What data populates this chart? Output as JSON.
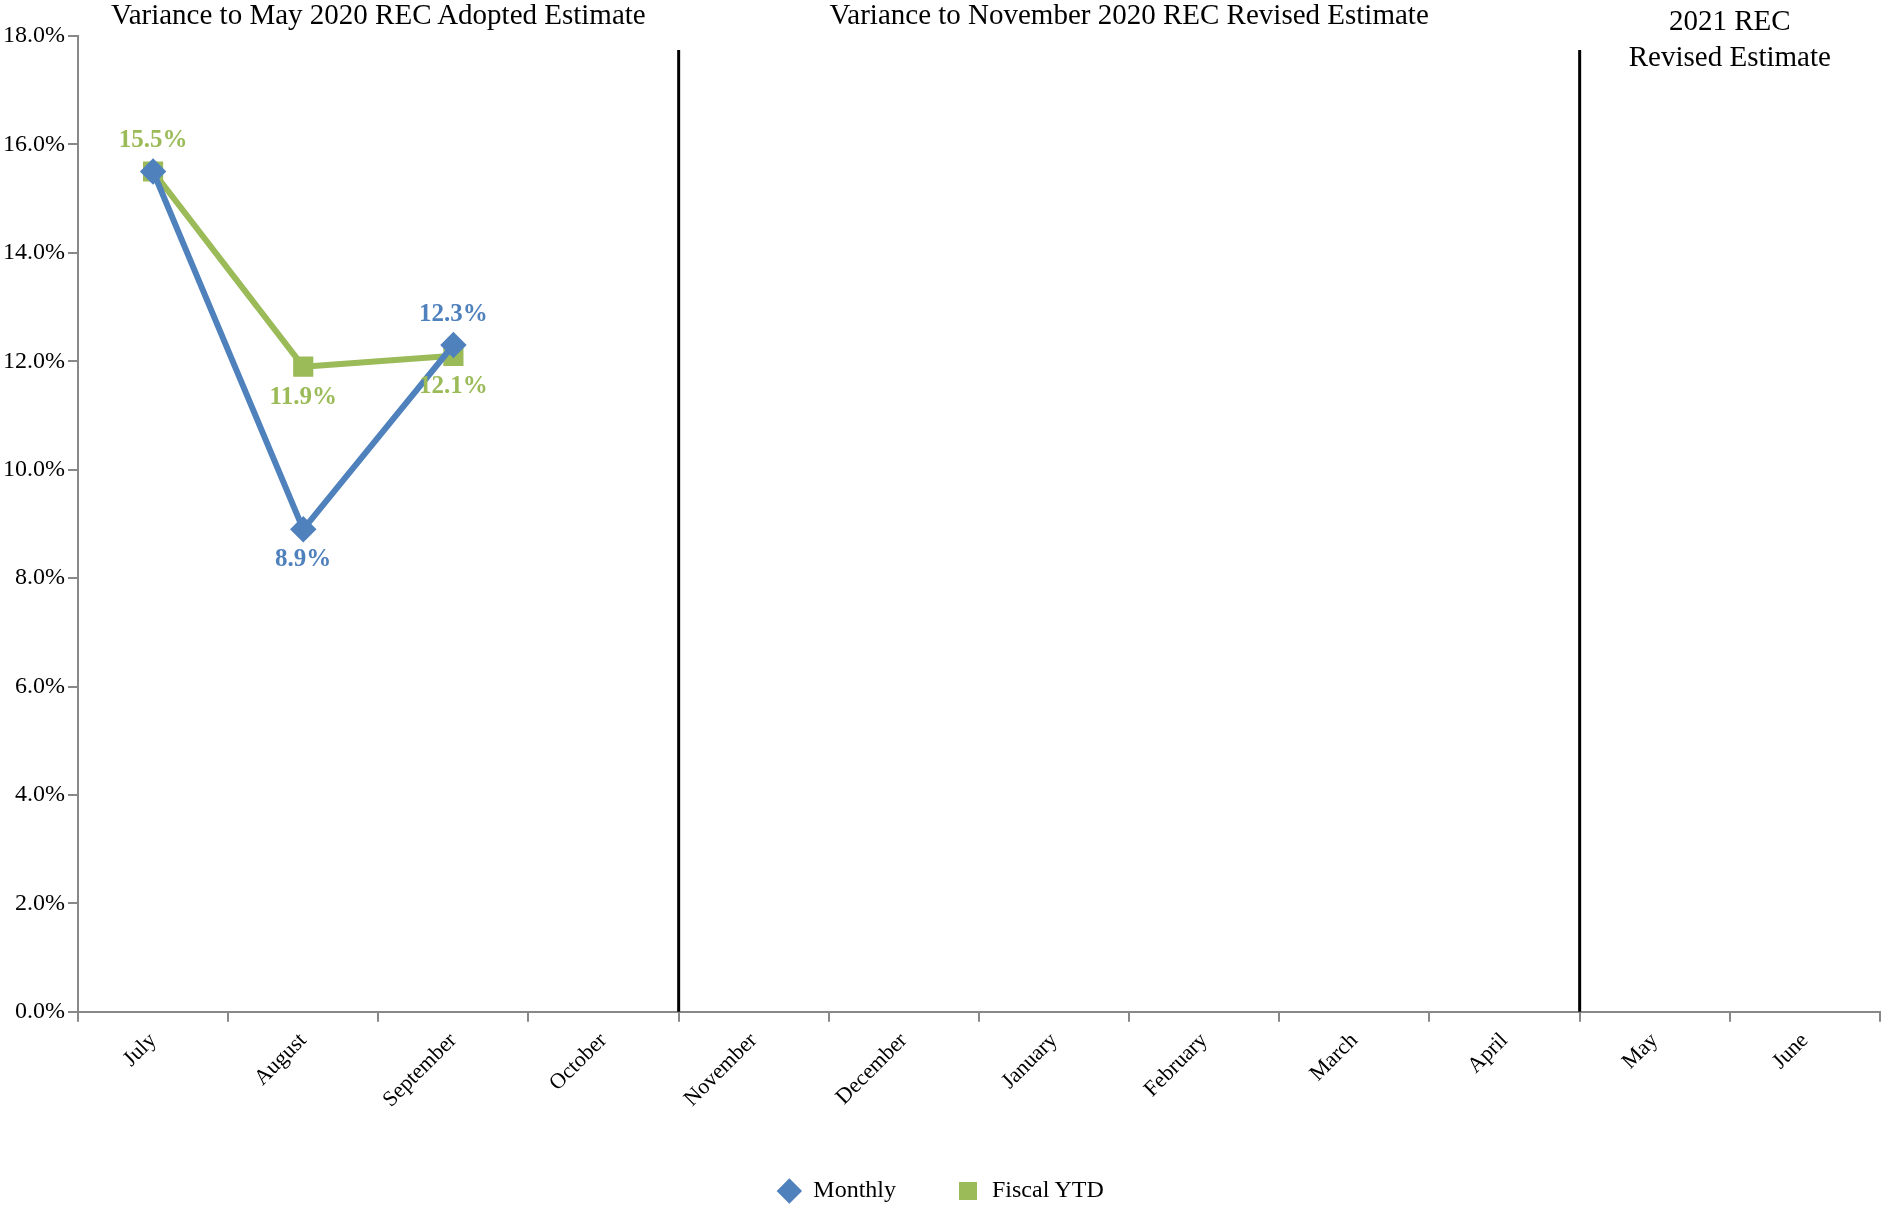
{
  "chart_data": {
    "type": "line",
    "categories": [
      "July",
      "August",
      "September",
      "October",
      "November",
      "December",
      "January",
      "February",
      "March",
      "April",
      "May",
      "June"
    ],
    "series": [
      {
        "name": "Monthly",
        "color": "#4f81bd",
        "marker": "diamond",
        "values": [
          15.5,
          8.9,
          12.3,
          null,
          null,
          null,
          null,
          null,
          null,
          null,
          null,
          null
        ],
        "value_labels": [
          null,
          "8.9%",
          "12.3%",
          null,
          null,
          null,
          null,
          null,
          null,
          null,
          null,
          null
        ]
      },
      {
        "name": "Fiscal YTD",
        "color": "#9bbb59",
        "marker": "square",
        "values": [
          15.5,
          11.9,
          12.1,
          null,
          null,
          null,
          null,
          null,
          null,
          null,
          null,
          null
        ],
        "value_labels": [
          "15.5%",
          "11.9%",
          "12.1%",
          null,
          null,
          null,
          null,
          null,
          null,
          null,
          null,
          null
        ]
      }
    ],
    "ylim": [
      0,
      18
    ],
    "yticks": [
      {
        "value": 0,
        "label": "0.0%"
      },
      {
        "value": 2,
        "label": "2.0%"
      },
      {
        "value": 4,
        "label": "4.0%"
      },
      {
        "value": 6,
        "label": "6.0%"
      },
      {
        "value": 8,
        "label": "8.0%"
      },
      {
        "value": 10,
        "label": "10.0%"
      },
      {
        "value": 12,
        "label": "12.0%"
      },
      {
        "value": 14,
        "label": "14.0%"
      },
      {
        "value": 16,
        "label": "16.0%"
      },
      {
        "value": 18,
        "label": "18.0%"
      }
    ],
    "grid": false,
    "legend": "bottom",
    "line_style": "solid",
    "annotations": [
      "Variance to May 2020 REC Adopted Estimate",
      "Variance to November 2020 REC Revised Estimate",
      "2021 REC\nRevised Estimate"
    ]
  }
}
